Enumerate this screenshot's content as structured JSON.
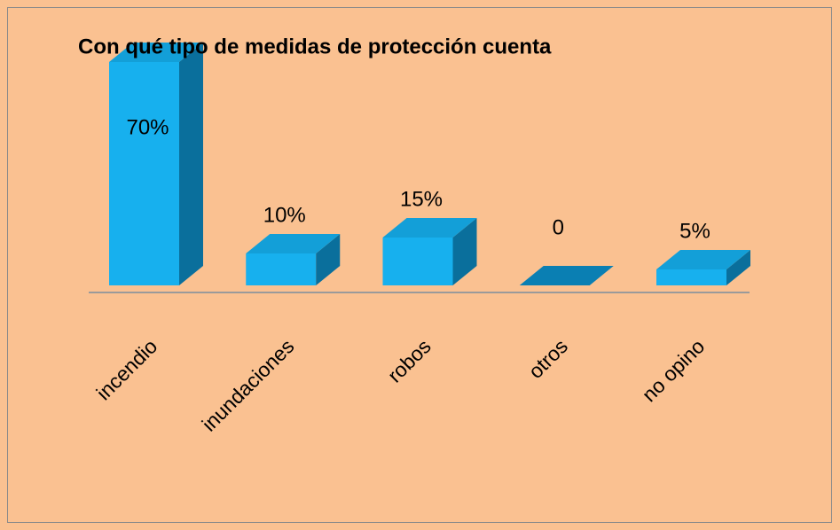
{
  "chart_data": {
    "type": "bar3d",
    "title": "Con qué tipo de medidas de protección cuenta",
    "categories": [
      "incendio",
      "inundaciones",
      "robos",
      "otros",
      "no opino"
    ],
    "values": [
      70,
      10,
      15,
      0,
      5
    ],
    "value_labels": [
      "70%",
      "10%",
      "15%",
      "0",
      "5%"
    ],
    "color": "#17b0ee"
  }
}
